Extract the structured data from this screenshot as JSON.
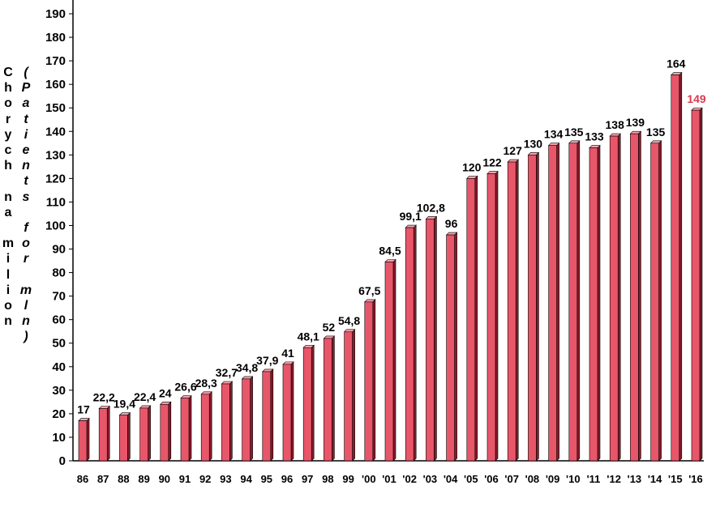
{
  "chart_data": {
    "type": "bar",
    "categories": [
      "86",
      "87",
      "88",
      "89",
      "90",
      "91",
      "92",
      "93",
      "94",
      "95",
      "96",
      "97",
      "98",
      "99",
      "'00",
      "'01",
      "'02",
      "'03",
      "'04",
      "'05",
      "'06",
      "'07",
      "'08",
      "'09",
      "'10",
      "'11",
      "'12",
      "'13",
      "'14",
      "'15",
      "'16"
    ],
    "values": [
      17,
      22.2,
      19.4,
      22.4,
      24,
      26.6,
      28.3,
      32.7,
      34.8,
      37.9,
      41,
      48.1,
      52,
      54.8,
      67.5,
      84.5,
      99.1,
      102.8,
      96,
      120,
      122,
      127,
      130,
      134,
      135,
      133,
      138,
      139,
      135,
      164,
      149
    ],
    "data_labels": [
      "17",
      "22,2",
      "19,4",
      "22,4",
      "24",
      "26,6",
      "28,3",
      "32,7",
      "34,8",
      "37,9",
      "41",
      "48,1",
      "52",
      "54,8",
      "67,5",
      "84,5",
      "99,1",
      "102,8",
      "96",
      "120",
      "122",
      "127",
      "130",
      "134",
      "135",
      "133",
      "138",
      "139",
      "135",
      "164",
      "149"
    ],
    "highlight_index": 30,
    "ylabel": "Chorych na milion",
    "ylabel_secondary": "(Patients for mln)",
    "ylim": [
      0,
      190
    ],
    "yticks": [
      0,
      10,
      20,
      30,
      40,
      50,
      60,
      70,
      80,
      90,
      100,
      110,
      120,
      130,
      140,
      150,
      160,
      170,
      180,
      190
    ],
    "grid": false,
    "colors": {
      "bar_front": "#e8566a",
      "bar_side": "#8a1a2a",
      "bar_top": "#f3a3ae",
      "bar_outline": "#000000",
      "label": "#000000",
      "highlight_label": "#d93a4e"
    }
  }
}
